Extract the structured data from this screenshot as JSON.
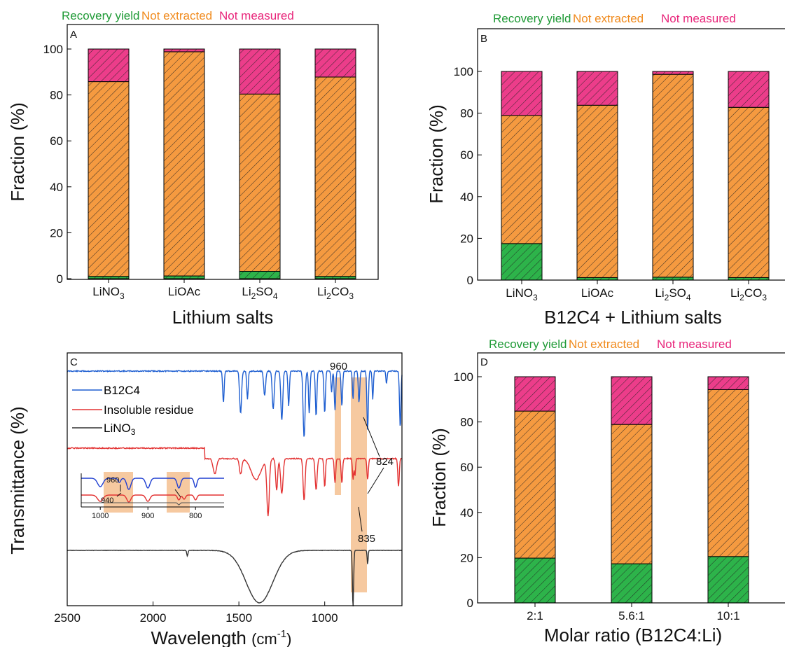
{
  "colors": {
    "recovery": "#2db34a",
    "not_extracted": "#f59a40",
    "not_measured": "#ec3d8a",
    "recovery_text": "#1f9a36",
    "not_extracted_text": "#f08a1c",
    "not_measured_text": "#e8257a",
    "b12c4_line": "#1f5fd1",
    "residue_line": "#e33232",
    "lino3_line": "#333333",
    "highlight": "#f5c08f"
  },
  "chart_data": [
    {
      "type": "bar",
      "stacked": true,
      "panel": "A",
      "legend": [
        "Recovery yield",
        "Not extracted",
        "Not measured"
      ],
      "categories": [
        "LiNO3",
        "LiOAc",
        "Li2SO4",
        "Li2CO3"
      ],
      "category_labels": [
        {
          "base": "LiNO",
          "sub": "3",
          "tail": ""
        },
        {
          "base": "LiOAc",
          "sub": "",
          "tail": ""
        },
        {
          "base": "Li",
          "sub": "2",
          "tail": "SO",
          "sub2": "4"
        },
        {
          "base": "Li",
          "sub": "2",
          "tail": "CO",
          "sub2": "3"
        }
      ],
      "series": [
        {
          "name": "Recovery yield",
          "values": [
            1,
            1.2,
            3.2,
            1
          ]
        },
        {
          "name": "Not extracted",
          "values": [
            84.8,
            97.6,
            77.2,
            86.8
          ]
        },
        {
          "name": "Not measured",
          "values": [
            14.2,
            1.2,
            19.6,
            12.2
          ]
        }
      ],
      "xlabel": "Lithium salts",
      "ylabel": "Fraction (%)",
      "ylim": [
        0,
        110
      ],
      "yticks": [
        0,
        20,
        40,
        60,
        80,
        100
      ]
    },
    {
      "type": "bar",
      "stacked": true,
      "panel": "B",
      "legend": [
        "Recovery yield",
        "Not extracted",
        "Not measured"
      ],
      "categories": [
        "LiNO3",
        "LiOAc",
        "Li2SO4",
        "Li2CO3"
      ],
      "category_labels": [
        {
          "base": "LiNO",
          "sub": "3",
          "tail": ""
        },
        {
          "base": "LiOAc",
          "sub": "",
          "tail": ""
        },
        {
          "base": "Li",
          "sub": "2",
          "tail": "SO",
          "sub2": "4"
        },
        {
          "base": "Li",
          "sub": "2",
          "tail": "CO",
          "sub2": "3"
        }
      ],
      "series": [
        {
          "name": "Recovery yield",
          "values": [
            17.5,
            1.2,
            1.4,
            1.2
          ]
        },
        {
          "name": "Not extracted",
          "values": [
            61.4,
            82.6,
            97.2,
            81.6
          ]
        },
        {
          "name": "Not measured",
          "values": [
            21.1,
            16.2,
            1.4,
            17.2
          ]
        }
      ],
      "xlabel": "B12C4 + Lithium salts",
      "ylabel": "Fraction (%)",
      "ylim": [
        0,
        110
      ],
      "yticks": [
        0,
        20,
        40,
        60,
        80,
        100
      ]
    },
    {
      "type": "line",
      "panel": "C",
      "xlabel": "Wavelength (cm-1)",
      "xlabel_parts": {
        "main": "Wavelength ",
        "paren_open": "(cm",
        "sup": "-1",
        "paren_close": ")"
      },
      "ylabel": "Transmittance (%)",
      "xlim": [
        2500,
        550
      ],
      "xticks": [
        2500,
        2000,
        1500,
        1000
      ],
      "legend": [
        {
          "name": "B12C4",
          "sub": ""
        },
        {
          "name": "Insoluble residue",
          "sub": ""
        },
        {
          "name": "LiNO",
          "sub": "3"
        }
      ],
      "annotations": [
        "960",
        "824",
        "835"
      ],
      "inset": {
        "xticks": [
          1000,
          900,
          800
        ],
        "annotations": [
          "960",
          "940"
        ]
      }
    },
    {
      "type": "bar",
      "stacked": true,
      "panel": "D",
      "legend": [
        "Recovery yield",
        "Not extracted",
        "Not measured"
      ],
      "categories": [
        "2:1",
        "5.6:1",
        "10:1"
      ],
      "series": [
        {
          "name": "Recovery yield",
          "values": [
            19.8,
            17.3,
            20.5
          ]
        },
        {
          "name": "Not extracted",
          "values": [
            65,
            61.6,
            73.8
          ]
        },
        {
          "name": "Not measured",
          "values": [
            15.2,
            21.1,
            5.7
          ]
        }
      ],
      "xlabel": "Molar ratio (B12C4:Li)",
      "ylabel": "Fraction (%)",
      "ylim": [
        0,
        110
      ],
      "yticks": [
        0,
        20,
        40,
        60,
        80,
        100
      ]
    }
  ]
}
